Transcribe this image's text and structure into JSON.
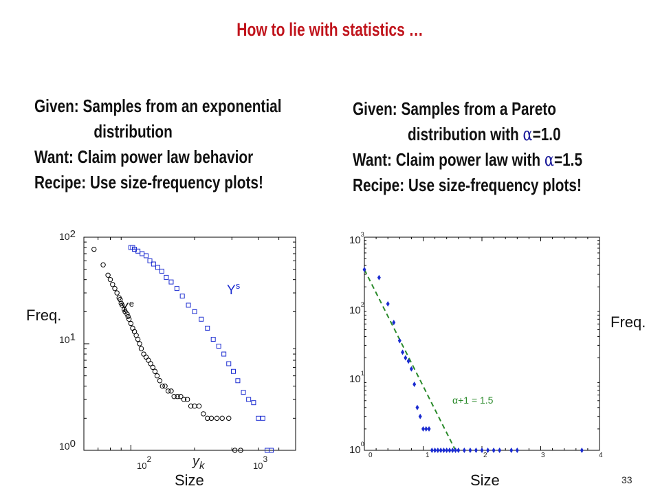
{
  "title": "How to lie with statistics …",
  "left": {
    "line1": "Given:  Samples from an exponential",
    "line2": "distribution",
    "line3": "Want:  Claim power law behavior",
    "line4": "Recipe: Use size-frequency plots!"
  },
  "right": {
    "line1": "Given: Samples from a Pareto",
    "line2a": "distribution with ",
    "alpha1": "α",
    "line2b": "=1.0",
    "line3a": "Want:  Claim power law with ",
    "alpha2": "α",
    "line3b": "=1.5",
    "line4": "Recipe: Use size-frequency plots!"
  },
  "left_chart_labels": {
    "ylabel": "Freq.",
    "xlabel": "Size",
    "yk_main": "y",
    "yk_sub": "k",
    "ye_main": "Y",
    "ye_sup": "e",
    "ys_main": "Y",
    "ys_sup": "s",
    "yt_base": "10",
    "yt_exp": [
      "0",
      "1",
      "2"
    ],
    "xt_base": "10",
    "xt_exp": [
      "2",
      "3"
    ]
  },
  "right_chart_labels": {
    "ylabel": "Freq.",
    "xlabel": "Size",
    "yt_base": "10",
    "yt_exp": [
      "0",
      "1",
      "2",
      "3"
    ],
    "xticks": [
      "0",
      "1",
      "2",
      "3",
      "4"
    ],
    "fit_label": "α+1 = 1.5"
  },
  "page_number": "33",
  "colors": {
    "title": "#c0141c",
    "ys_series": "#1a2bd0",
    "ye_series": "#000000",
    "fit_line": "#2a8a2a",
    "points": "#1a2bd0"
  },
  "chart_data": [
    {
      "type": "scatter",
      "xlabel": "Size",
      "ylabel": "Freq.",
      "xscale": "log",
      "yscale": "log",
      "ylim": [
        1,
        100
      ],
      "series": [
        {
          "name": "Ye",
          "marker": "circle",
          "x": [
            67,
            74,
            78,
            80,
            82,
            84,
            86,
            88,
            89,
            90,
            91,
            93,
            94,
            96,
            97,
            98,
            100,
            102,
            104,
            106,
            108,
            110,
            112,
            115,
            118,
            121,
            124,
            127,
            130,
            133,
            137,
            141,
            145,
            150,
            155,
            160,
            166,
            172,
            178,
            185,
            192,
            200,
            210,
            220,
            230,
            240,
            255,
            270,
            290,
            310,
            330
          ],
          "y": [
            77,
            55,
            44,
            40,
            36,
            33,
            30,
            27,
            26,
            24,
            23,
            21,
            20,
            19,
            18,
            17,
            15.5,
            14,
            13,
            12,
            11,
            10,
            9,
            8,
            7.5,
            7,
            6.5,
            6,
            5.5,
            5,
            4.5,
            4,
            4,
            3.6,
            3.6,
            3.2,
            3.2,
            3.2,
            3,
            3,
            2.6,
            2.6,
            2.6,
            2.2,
            2,
            2,
            2,
            2,
            2,
            1,
            1
          ]
        },
        {
          "name": "Ys",
          "marker": "square",
          "x": [
            100,
            102,
            104,
            108,
            113,
            118,
            123,
            128,
            134,
            140,
            147,
            155,
            165,
            175,
            187,
            200,
            215,
            230,
            245,
            260,
            275,
            290,
            305,
            320,
            340,
            360,
            380,
            400,
            420,
            440,
            460
          ],
          "y": [
            80,
            80,
            77,
            74,
            70,
            67,
            60,
            56,
            52,
            48,
            42,
            38,
            33,
            28,
            23,
            20,
            17,
            14,
            11,
            9.5,
            8,
            6.5,
            5.5,
            4.5,
            3.5,
            3,
            2.8,
            2,
            2,
            1,
            1
          ]
        }
      ]
    },
    {
      "type": "scatter",
      "xlabel": "Size",
      "ylabel": "Freq.",
      "xlim": [
        0,
        4
      ],
      "yscale": "log",
      "ylim": [
        1,
        1000
      ],
      "fit_line": {
        "label": "α+1 = 1.5",
        "x": [
          0,
          1.55
        ],
        "y": [
          350,
          1
        ]
      },
      "x": [
        0.0,
        0.25,
        0.4,
        0.5,
        0.6,
        0.65,
        0.7,
        0.75,
        0.8,
        0.85,
        0.9,
        0.95,
        1.0,
        1.05,
        1.1,
        1.15,
        1.2,
        1.25,
        1.3,
        1.35,
        1.4,
        1.45,
        1.5,
        1.55,
        1.6,
        1.7,
        1.8,
        1.9,
        2.0,
        2.1,
        2.2,
        2.3,
        2.5,
        2.6,
        3.7
      ],
      "y": [
        350,
        270,
        115,
        63,
        35,
        24,
        20,
        18,
        14,
        8.5,
        4,
        3,
        2,
        2,
        2,
        1,
        1,
        1,
        1,
        1,
        1,
        1,
        1,
        1,
        1,
        1,
        1,
        1,
        1,
        1,
        1,
        1,
        1,
        1,
        1
      ]
    }
  ]
}
